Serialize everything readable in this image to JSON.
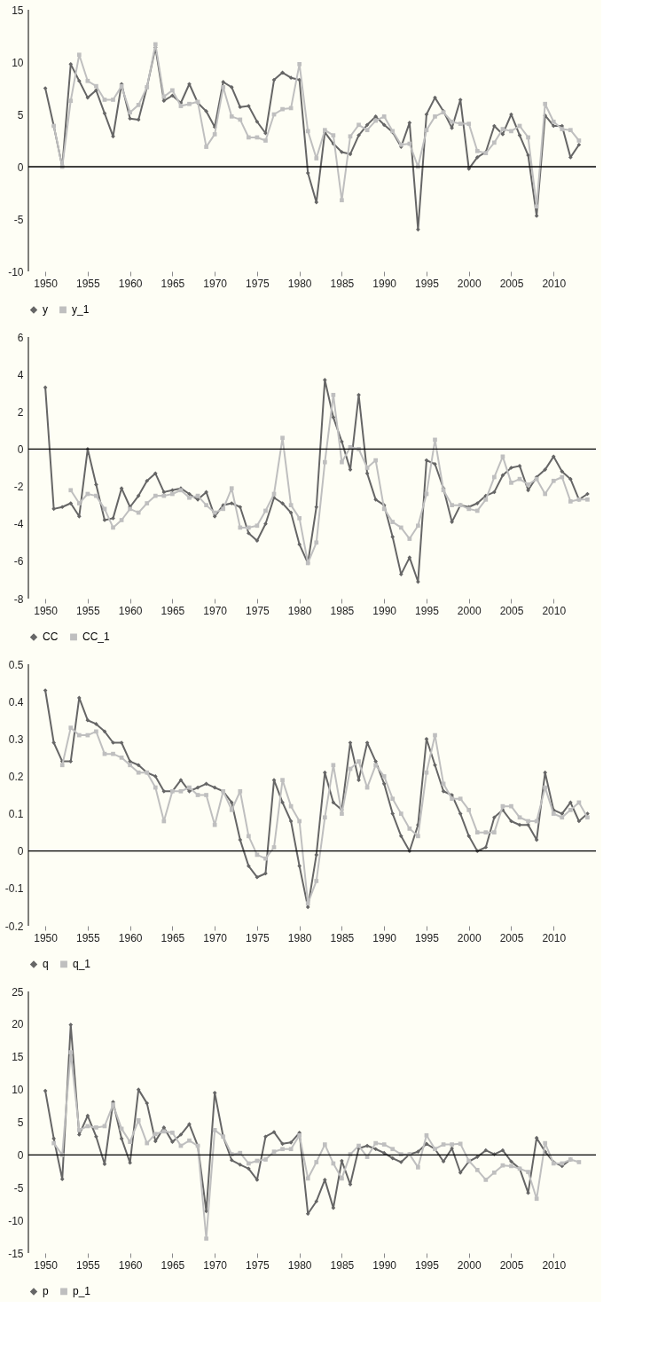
{
  "chart_data": [
    {
      "type": "line",
      "x": [
        1950,
        1951,
        1952,
        1953,
        1954,
        1955,
        1956,
        1957,
        1958,
        1959,
        1960,
        1961,
        1962,
        1963,
        1964,
        1965,
        1966,
        1967,
        1968,
        1969,
        1970,
        1971,
        1972,
        1973,
        1974,
        1975,
        1976,
        1977,
        1978,
        1979,
        1980,
        1981,
        1982,
        1983,
        1984,
        1985,
        1986,
        1987,
        1988,
        1989,
        1990,
        1991,
        1992,
        1993,
        1994,
        1995,
        1996,
        1997,
        1998,
        1999,
        2000,
        2001,
        2002,
        2003,
        2004,
        2005,
        2006,
        2007,
        2008,
        2009,
        2010,
        2011,
        2012,
        2013
      ],
      "xlim": [
        1948,
        2015
      ],
      "xticks": [
        1950,
        1955,
        1960,
        1965,
        1970,
        1975,
        1980,
        1985,
        1990,
        1995,
        2000,
        2005,
        2010
      ],
      "ylim": [
        -10,
        15
      ],
      "yticks": [
        -10,
        -5,
        0,
        5,
        10,
        15
      ],
      "grid": false,
      "legend": "bottom",
      "ref_lines": [
        {
          "axis": "y",
          "value": 0,
          "color": "#000000"
        }
      ],
      "series": [
        {
          "name": "y",
          "color": "#666666",
          "marker": "diamond",
          "values": [
            7.5,
            3.9,
            0.0,
            9.8,
            8.2,
            6.6,
            7.3,
            5.1,
            2.9,
            7.9,
            4.6,
            4.5,
            7.6,
            11.4,
            6.3,
            6.8,
            6.1,
            7.9,
            6.1,
            5.3,
            3.8,
            8.1,
            7.6,
            5.7,
            5.8,
            4.3,
            3.2,
            8.3,
            9.0,
            8.5,
            8.3,
            -0.6,
            -3.4,
            3.3,
            2.2,
            1.4,
            1.2,
            3.0,
            4.0,
            4.8,
            4.0,
            3.3,
            1.9,
            4.2,
            -6.0,
            5.0,
            6.6,
            5.3,
            3.7,
            6.4,
            -0.2,
            0.9,
            1.4,
            3.9,
            3.1,
            5.0,
            3.0,
            1.1,
            -4.7,
            4.9,
            3.9,
            3.9,
            0.9,
            2.1
          ]
        },
        {
          "name": "y_1",
          "color": "#bfbfbf",
          "marker": "square",
          "values": [
            null,
            3.9,
            0.0,
            6.3,
            10.7,
            8.2,
            7.7,
            6.4,
            6.4,
            7.7,
            5.2,
            5.9,
            7.6,
            11.7,
            6.7,
            7.3,
            5.8,
            6.0,
            6.2,
            1.9,
            3.1,
            7.6,
            4.8,
            4.5,
            2.8,
            2.8,
            2.5,
            5.0,
            5.5,
            5.6,
            9.8,
            3.4,
            0.8,
            3.5,
            3.0,
            -3.2,
            2.9,
            4.0,
            3.5,
            4.4,
            4.8,
            3.4,
            2.1,
            2.2,
            0.0,
            3.5,
            4.8,
            5.2,
            4.3,
            4.1,
            4.1,
            1.5,
            1.3,
            2.3,
            3.6,
            3.4,
            3.9,
            2.8,
            -3.8,
            6.0,
            4.3,
            3.6,
            3.5,
            2.5
          ]
        }
      ]
    },
    {
      "type": "line",
      "x": [
        1950,
        1951,
        1952,
        1953,
        1954,
        1955,
        1956,
        1957,
        1958,
        1959,
        1960,
        1961,
        1962,
        1963,
        1964,
        1965,
        1966,
        1967,
        1968,
        1969,
        1970,
        1971,
        1972,
        1973,
        1974,
        1975,
        1976,
        1977,
        1978,
        1979,
        1980,
        1981,
        1982,
        1983,
        1984,
        1985,
        1986,
        1987,
        1988,
        1989,
        1990,
        1991,
        1992,
        1993,
        1994,
        1995,
        1996,
        1997,
        1998,
        1999,
        2000,
        2001,
        2002,
        2003,
        2004,
        2005,
        2006,
        2007,
        2008,
        2009,
        2010,
        2011,
        2012,
        2013,
        2014
      ],
      "xlim": [
        1948,
        2015
      ],
      "xticks": [
        1950,
        1955,
        1960,
        1965,
        1970,
        1975,
        1980,
        1985,
        1990,
        1995,
        2000,
        2005,
        2010
      ],
      "ylim": [
        -8,
        6
      ],
      "yticks": [
        -8,
        -6,
        -4,
        -2,
        0,
        2,
        4,
        6
      ],
      "grid": false,
      "legend": "bottom",
      "ref_lines": [
        {
          "axis": "y",
          "value": 0,
          "color": "#000000"
        }
      ],
      "series": [
        {
          "name": "CC",
          "color": "#666666",
          "marker": "diamond",
          "values": [
            3.3,
            -3.2,
            -3.1,
            -2.9,
            -3.6,
            0.0,
            -1.9,
            -3.8,
            -3.7,
            -2.1,
            -3.1,
            -2.5,
            -1.7,
            -1.3,
            -2.3,
            -2.2,
            -2.1,
            -2.4,
            -2.7,
            -2.3,
            -3.6,
            -3.0,
            -2.9,
            -3.1,
            -4.5,
            -4.9,
            -4.0,
            -2.6,
            -2.9,
            -3.4,
            -5.1,
            -6.1,
            -3.1,
            3.7,
            1.7,
            0.4,
            -1.1,
            2.9,
            -1.3,
            -2.7,
            -3.0,
            -4.7,
            -6.7,
            -5.8,
            -7.1,
            -0.6,
            -0.8,
            -2.1,
            -3.9,
            -3.0,
            -3.1,
            -2.9,
            -2.5,
            -2.3,
            -1.4,
            -1.0,
            -0.9,
            -2.2,
            -1.5,
            -1.1,
            -0.4,
            -1.2,
            -1.6,
            -2.7,
            -2.4
          ]
        },
        {
          "name": "CC_1",
          "color": "#bfbfbf",
          "marker": "square",
          "values": [
            null,
            null,
            null,
            -2.2,
            -2.9,
            -2.4,
            -2.5,
            -3.2,
            -4.2,
            -3.8,
            -3.2,
            -3.4,
            -2.9,
            -2.5,
            -2.5,
            -2.4,
            -2.2,
            -2.6,
            -2.5,
            -3.0,
            -3.4,
            -3.2,
            -2.1,
            -4.2,
            -4.2,
            -4.1,
            -3.3,
            -2.4,
            0.6,
            -3.0,
            -3.7,
            -6.1,
            -5.0,
            -0.7,
            2.9,
            -0.7,
            0.1,
            0.0,
            -1.0,
            -0.6,
            -3.2,
            -3.9,
            -4.2,
            -4.8,
            -4.1,
            -2.4,
            0.5,
            -2.2,
            -3.0,
            -3.0,
            -3.2,
            -3.3,
            -2.7,
            -1.5,
            -0.4,
            -1.8,
            -1.6,
            -1.9,
            -1.6,
            -2.4,
            -1.7,
            -1.5,
            -2.8,
            -2.7,
            -2.7
          ]
        }
      ]
    },
    {
      "type": "line",
      "x": [
        1950,
        1951,
        1952,
        1953,
        1954,
        1955,
        1956,
        1957,
        1958,
        1959,
        1960,
        1961,
        1962,
        1963,
        1964,
        1965,
        1966,
        1967,
        1968,
        1969,
        1970,
        1971,
        1972,
        1973,
        1974,
        1975,
        1976,
        1977,
        1978,
        1979,
        1980,
        1981,
        1982,
        1983,
        1984,
        1985,
        1986,
        1987,
        1988,
        1989,
        1990,
        1991,
        1992,
        1993,
        1994,
        1995,
        1996,
        1997,
        1998,
        1999,
        2000,
        2001,
        2002,
        2003,
        2004,
        2005,
        2006,
        2007,
        2008,
        2009,
        2010,
        2011,
        2012,
        2013,
        2014
      ],
      "xlim": [
        1948,
        2015
      ],
      "xticks": [
        1950,
        1955,
        1960,
        1965,
        1970,
        1975,
        1980,
        1985,
        1990,
        1995,
        2000,
        2005,
        2010
      ],
      "ylim": [
        -0.2,
        0.5
      ],
      "yticks": [
        -0.2,
        -0.1,
        0,
        0.1,
        0.2,
        0.3,
        0.4,
        0.5
      ],
      "grid": false,
      "legend": "bottom",
      "ref_lines": [
        {
          "axis": "y",
          "value": 0,
          "color": "#000000"
        }
      ],
      "series": [
        {
          "name": "q",
          "color": "#666666",
          "marker": "diamond",
          "values": [
            0.43,
            0.29,
            0.24,
            0.24,
            0.41,
            0.35,
            0.34,
            0.32,
            0.29,
            0.29,
            0.24,
            0.23,
            0.21,
            0.2,
            0.16,
            0.16,
            0.19,
            0.16,
            0.17,
            0.18,
            0.17,
            0.16,
            0.13,
            0.03,
            -0.04,
            -0.07,
            -0.06,
            0.19,
            0.13,
            0.08,
            -0.04,
            -0.15,
            -0.01,
            0.21,
            0.13,
            0.11,
            0.29,
            0.19,
            0.29,
            0.24,
            0.18,
            0.1,
            0.04,
            0.0,
            0.07,
            0.3,
            0.23,
            0.16,
            0.15,
            0.1,
            0.04,
            0.0,
            0.01,
            0.09,
            0.11,
            0.08,
            0.07,
            0.07,
            0.03,
            0.21,
            0.11,
            0.1,
            0.13,
            0.08,
            0.1
          ]
        },
        {
          "name": "q_1",
          "color": "#bfbfbf",
          "marker": "square",
          "values": [
            null,
            null,
            0.23,
            0.33,
            0.31,
            0.31,
            0.32,
            0.26,
            0.26,
            0.25,
            0.23,
            0.21,
            0.21,
            0.17,
            0.08,
            0.16,
            0.16,
            0.17,
            0.15,
            0.15,
            0.07,
            0.16,
            0.11,
            0.16,
            0.04,
            -0.01,
            -0.02,
            0.01,
            0.19,
            0.12,
            0.08,
            -0.14,
            -0.08,
            0.09,
            0.23,
            0.1,
            0.22,
            0.24,
            0.17,
            0.23,
            0.2,
            0.14,
            0.1,
            0.06,
            0.04,
            0.21,
            0.31,
            0.18,
            0.14,
            0.14,
            0.11,
            0.05,
            0.05,
            0.05,
            0.12,
            0.12,
            0.09,
            0.08,
            0.08,
            0.17,
            0.1,
            0.09,
            0.11,
            0.13,
            0.09
          ]
        }
      ]
    },
    {
      "type": "line",
      "x": [
        1950,
        1951,
        1952,
        1953,
        1954,
        1955,
        1956,
        1957,
        1958,
        1959,
        1960,
        1961,
        1962,
        1963,
        1964,
        1965,
        1966,
        1967,
        1968,
        1969,
        1970,
        1971,
        1972,
        1973,
        1974,
        1975,
        1976,
        1977,
        1978,
        1979,
        1980,
        1981,
        1982,
        1983,
        1984,
        1985,
        1986,
        1987,
        1988,
        1989,
        1990,
        1991,
        1992,
        1993,
        1994,
        1995,
        1996,
        1997,
        1998,
        1999,
        2000,
        2001,
        2002,
        2003,
        2004,
        2005,
        2006,
        2007,
        2008,
        2009,
        2010,
        2011,
        2012,
        2013
      ],
      "xlim": [
        1948,
        2015
      ],
      "xticks": [
        1950,
        1955,
        1960,
        1965,
        1970,
        1975,
        1980,
        1985,
        1990,
        1995,
        2000,
        2005,
        2010
      ],
      "ylim": [
        -15,
        25
      ],
      "yticks": [
        -15,
        -10,
        -5,
        0,
        5,
        10,
        15,
        20,
        25
      ],
      "grid": false,
      "legend": "bottom",
      "ref_lines": [
        {
          "axis": "y",
          "value": 0,
          "color": "#000000"
        }
      ],
      "series": [
        {
          "name": "p",
          "color": "#666666",
          "marker": "diamond",
          "values": [
            9.8,
            2.5,
            -3.7,
            19.9,
            3.1,
            6.0,
            2.8,
            -1.4,
            8.1,
            2.5,
            -1.2,
            10.0,
            7.9,
            2.1,
            4.2,
            2.0,
            3.1,
            4.7,
            1.4,
            -8.6,
            9.5,
            2.8,
            -0.8,
            -1.5,
            -2.1,
            -3.8,
            2.8,
            3.5,
            1.7,
            1.9,
            3.4,
            -9.0,
            -7.1,
            -3.8,
            -8.1,
            -0.9,
            -4.5,
            1.0,
            1.4,
            0.9,
            0.3,
            -0.5,
            -1.1,
            0.1,
            0.5,
            1.7,
            0.9,
            -1.0,
            1.0,
            -2.7,
            -1.0,
            -0.3,
            0.7,
            0.1,
            0.7,
            -1.0,
            -2.1,
            -5.8,
            2.6,
            0.5,
            -1.1,
            -1.7,
            -0.7,
            null
          ]
        },
        {
          "name": "p_1",
          "color": "#bfbfbf",
          "marker": "square",
          "values": [
            null,
            1.8,
            0.0,
            15.7,
            3.8,
            4.4,
            4.2,
            4.4,
            7.7,
            4.0,
            2.0,
            5.3,
            1.8,
            3.2,
            3.6,
            3.4,
            1.4,
            2.2,
            1.4,
            -12.8,
            3.8,
            2.8,
            0.1,
            0.3,
            -1.3,
            -0.9,
            -0.7,
            0.5,
            0.9,
            0.9,
            3.0,
            -3.6,
            -1.1,
            1.6,
            -1.3,
            -3.6,
            0.1,
            1.4,
            -0.3,
            1.8,
            1.6,
            0.9,
            0.1,
            0.1,
            -1.9,
            3.0,
            0.9,
            1.6,
            1.6,
            1.7,
            -0.9,
            -2.3,
            -3.8,
            -2.7,
            -1.6,
            -1.7,
            -2.1,
            -2.6,
            -6.7,
            1.8,
            -1.3,
            -1.3,
            -0.7,
            -1.1
          ]
        }
      ]
    }
  ]
}
